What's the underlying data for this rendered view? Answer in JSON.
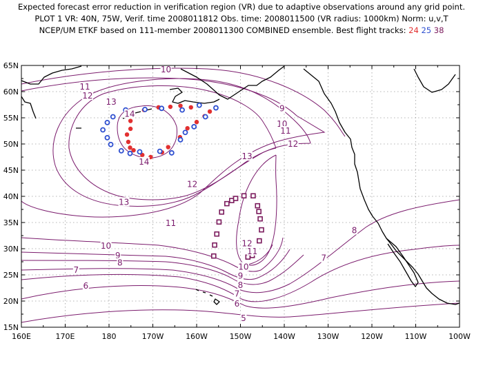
{
  "header": {
    "line1": "Expected forecast error reduction in verification region (VR) due to adaptive observations around any grid point.",
    "line2": "PLOT 1 VR: 40N, 75W, Verif. time 2008011812 Obs. time: 2008011500 (VR radius: 1000km) Norm: u,v,T",
    "line3_prefix": "NCEP/UM ETKF based on 111-member 2008011300 COMBINED ensemble.  Best flight tracks:",
    "track_24": "24",
    "track_25": "25",
    "track_38": "38"
  },
  "colors": {
    "track_24": "#e23030",
    "track_25": "#2e4fd0",
    "track_38": "#7a1a5c",
    "contour": "#7a1a6c"
  },
  "map": {
    "lon_labels": [
      "160E",
      "170E",
      "180",
      "170W",
      "160W",
      "150W",
      "140W",
      "130W",
      "120W",
      "110W",
      "100W"
    ],
    "lat_labels": [
      "65N",
      "60N",
      "55N",
      "50N",
      "45N",
      "40N",
      "35N",
      "30N",
      "25N",
      "20N",
      "15N"
    ]
  },
  "contour_labels": [
    {
      "text": "10",
      "lon": -167.0,
      "lat": 64.2
    },
    {
      "text": "11",
      "lon": 174.5,
      "lat": 60.9
    },
    {
      "text": "12",
      "lon": 175.1,
      "lat": 59.2
    },
    {
      "text": "13",
      "lon": 180.5,
      "lat": 58.0
    },
    {
      "text": "14",
      "lon": -175.3,
      "lat": 55.7
    },
    {
      "text": "14",
      "lon": -172.0,
      "lat": 46.6
    },
    {
      "text": "9",
      "lon": -140.5,
      "lat": 56.8
    },
    {
      "text": "10",
      "lon": -140.5,
      "lat": 53.8
    },
    {
      "text": "11",
      "lon": -139.7,
      "lat": 52.5
    },
    {
      "text": "12",
      "lon": -138.0,
      "lat": 50.0
    },
    {
      "text": "13",
      "lon": -148.5,
      "lat": 47.6
    },
    {
      "text": "12",
      "lon": -161.0,
      "lat": 42.3
    },
    {
      "text": "13",
      "lon": -176.6,
      "lat": 38.9
    },
    {
      "text": "11",
      "lon": -165.9,
      "lat": 34.9
    },
    {
      "text": "10",
      "lon": -180.7,
      "lat": 30.5
    },
    {
      "text": "9",
      "lon": -178.0,
      "lat": 28.7
    },
    {
      "text": "8",
      "lon": -177.5,
      "lat": 27.3
    },
    {
      "text": "7",
      "lon": 172.5,
      "lat": 25.9
    },
    {
      "text": "6",
      "lon": 174.7,
      "lat": 22.9
    },
    {
      "text": "12",
      "lon": -148.5,
      "lat": 31.0
    },
    {
      "text": "11",
      "lon": -147.3,
      "lat": 29.5
    },
    {
      "text": "10",
      "lon": -149.3,
      "lat": 26.5
    },
    {
      "text": "9",
      "lon": -150.0,
      "lat": 24.8
    },
    {
      "text": "8",
      "lon": -150.0,
      "lat": 23.0
    },
    {
      "text": "7",
      "lon": -150.8,
      "lat": 21.4
    },
    {
      "text": "6",
      "lon": -150.8,
      "lat": 19.5
    },
    {
      "text": "5",
      "lon": -149.3,
      "lat": 16.7
    },
    {
      "text": "8",
      "lon": -124.0,
      "lat": 33.5
    },
    {
      "text": "7",
      "lon": -131.0,
      "lat": 28.2
    }
  ],
  "track_24_points": [
    [
      -175.1,
      52.9
    ],
    [
      -175.9,
      51.8
    ],
    [
      -175.6,
      50.4
    ],
    [
      -175.2,
      49.3
    ],
    [
      -174.4,
      48.8
    ],
    [
      -172.4,
      47.9
    ],
    [
      -170.5,
      47.5
    ],
    [
      -167.9,
      48.4
    ],
    [
      -166.5,
      49.4
    ],
    [
      -163.8,
      51.3
    ],
    [
      -162.1,
      53.0
    ],
    [
      -160.0,
      54.2
    ],
    [
      -158.2,
      55.3
    ],
    [
      -157.0,
      56.2
    ],
    [
      -161.3,
      57.0
    ],
    [
      -163.7,
      57.3
    ],
    [
      -166.0,
      57.1
    ],
    [
      -168.7,
      57.0
    ],
    [
      -172.0,
      56.5
    ],
    [
      -174.9,
      56.0
    ],
    [
      -175.1,
      55.6
    ],
    [
      -175.1,
      54.4
    ]
  ],
  "track_25_points": [
    [
      -159.4,
      57.4
    ],
    [
      -155.6,
      56.9
    ],
    [
      -158.0,
      55.2
    ],
    [
      -160.6,
      53.3
    ],
    [
      -162.6,
      52.2
    ],
    [
      -163.7,
      50.8
    ],
    [
      -165.7,
      48.3
    ],
    [
      -168.4,
      48.6
    ],
    [
      -173.0,
      48.5
    ],
    [
      -175.2,
      48.2
    ],
    [
      -177.2,
      48.7
    ],
    [
      -179.6,
      49.9
    ],
    [
      -180.4,
      51.2
    ],
    [
      -181.4,
      52.7
    ],
    [
      -180.4,
      54.1
    ],
    [
      -179.1,
      55.2
    ],
    [
      -176.2,
      56.5
    ],
    [
      -171.8,
      56.6
    ],
    [
      -168.0,
      56.8
    ],
    [
      -163.3,
      56.5
    ]
  ],
  "track_38_points": [
    [
      -156.1,
      28.6
    ],
    [
      -155.9,
      30.7
    ],
    [
      -155.4,
      32.8
    ],
    [
      -154.9,
      35.1
    ],
    [
      -154.3,
      37.0
    ],
    [
      -153.1,
      38.6
    ],
    [
      -152.0,
      39.2
    ],
    [
      -151.1,
      39.6
    ],
    [
      -149.2,
      40.1
    ],
    [
      -147.1,
      40.1
    ],
    [
      -146.1,
      38.2
    ],
    [
      -145.8,
      37.1
    ],
    [
      -145.5,
      35.7
    ],
    [
      -145.2,
      33.6
    ],
    [
      -145.7,
      31.5
    ],
    [
      -146.7,
      29.8
    ],
    [
      -147.3,
      28.7
    ],
    [
      -148.3,
      28.4
    ],
    [
      -149.3,
      26.8
    ]
  ]
}
